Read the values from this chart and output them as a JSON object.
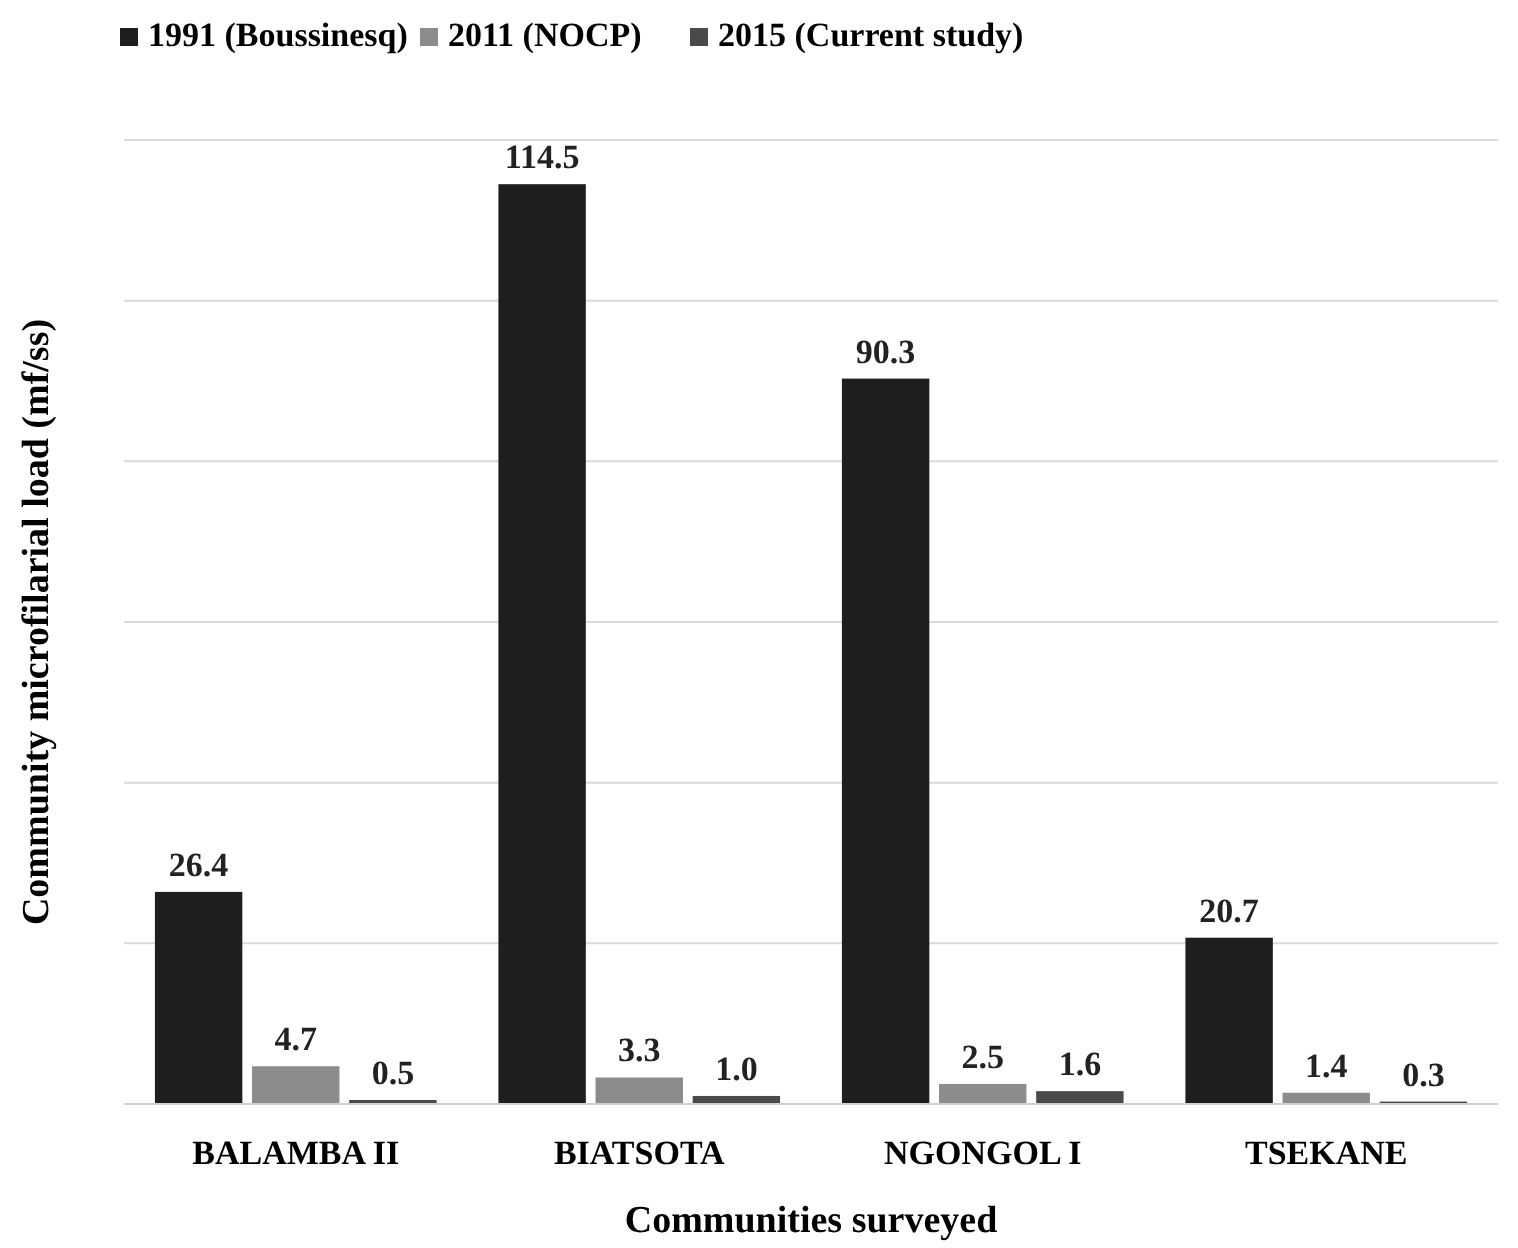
{
  "chart_data": {
    "type": "bar",
    "xlabel": "Communities surveyed",
    "ylabel": "Community microfilarial load (mf/ss)",
    "categories": [
      "BALAMBA II",
      "BIATSOTA",
      "NGONGOL I",
      "TSEKANE"
    ],
    "series": [
      {
        "name": "1991 (Boussinesq)",
        "color": "#1e1e1e",
        "values": [
          26.4,
          114.5,
          90.3,
          20.7
        ],
        "value_labels": [
          "26.4",
          "114.5",
          "90.3",
          "20.7"
        ]
      },
      {
        "name": "2011 (NOCP)",
        "color": "#8c8c8c",
        "values": [
          4.7,
          3.3,
          2.5,
          1.4
        ],
        "value_labels": [
          "4.7",
          "3.3",
          "2.5",
          "1.4"
        ]
      },
      {
        "name": "2015 (Current study)",
        "color": "#4a4a4a",
        "values": [
          0.5,
          1.0,
          1.6,
          0.3
        ],
        "value_labels": [
          "0.5",
          "1.0",
          "1.6",
          "0.3"
        ]
      }
    ],
    "ylim": [
      0,
      120
    ],
    "yticks": [
      {
        "value": 0,
        "label": null
      },
      {
        "value": 20,
        "label": null
      },
      {
        "value": 40,
        "label": null
      },
      {
        "value": 60,
        "label": null
      },
      {
        "value": 80,
        "label": null
      },
      {
        "value": 100,
        "label": null
      },
      {
        "value": 120,
        "label": null
      }
    ],
    "tick_labels": "x",
    "grid": "y",
    "legend": "top"
  }
}
